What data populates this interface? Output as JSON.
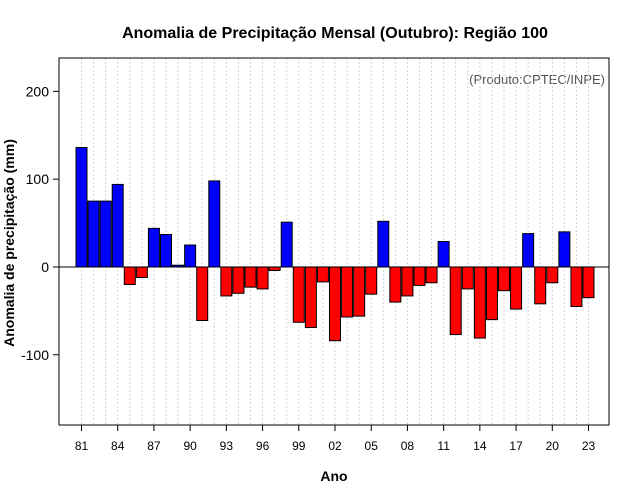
{
  "chart_data": {
    "type": "bar",
    "title": "Anomalia de Precipitação Mensal (Outubro): Região 100",
    "xlabel": "Ano",
    "ylabel": "Anomalia de precipitação (mm)",
    "annotation": "(Produto:CPTEC/INPE)",
    "ylim": [
      -180,
      238
    ],
    "yticks": [
      -100,
      0,
      100,
      200
    ],
    "ytick_labels": [
      "-100",
      "0",
      "100",
      "200"
    ],
    "grid": true,
    "categories": [
      "81",
      "82",
      "83",
      "84",
      "85",
      "86",
      "87",
      "88",
      "89",
      "90",
      "91",
      "92",
      "93",
      "94",
      "95",
      "96",
      "97",
      "98",
      "99",
      "00",
      "01",
      "02",
      "03",
      "04",
      "05",
      "06",
      "07",
      "08",
      "09",
      "10",
      "11",
      "12",
      "13",
      "14",
      "15",
      "16",
      "17",
      "18",
      "19",
      "20",
      "21",
      "22",
      "23"
    ],
    "xtick_labels": [
      "81",
      "84",
      "87",
      "90",
      "93",
      "96",
      "99",
      "02",
      "05",
      "08",
      "11",
      "14",
      "17",
      "20",
      "23"
    ],
    "values": [
      136,
      75,
      75,
      94,
      -20,
      -12,
      44,
      37,
      2,
      25,
      -61,
      98,
      -33,
      -30,
      -23,
      -25,
      -4,
      51,
      -63,
      -69,
      -17,
      -84,
      -57,
      -56,
      -31,
      52,
      -40,
      -33,
      -21,
      -18,
      29,
      -77,
      -25,
      -81,
      -60,
      -27,
      -48,
      38,
      -42,
      -18,
      40,
      -45,
      -35
    ],
    "colors": {
      "positive": "#0000ff",
      "negative": "#ff0000",
      "bar_edge": "#000000",
      "grid": "#d3d3d3"
    }
  }
}
